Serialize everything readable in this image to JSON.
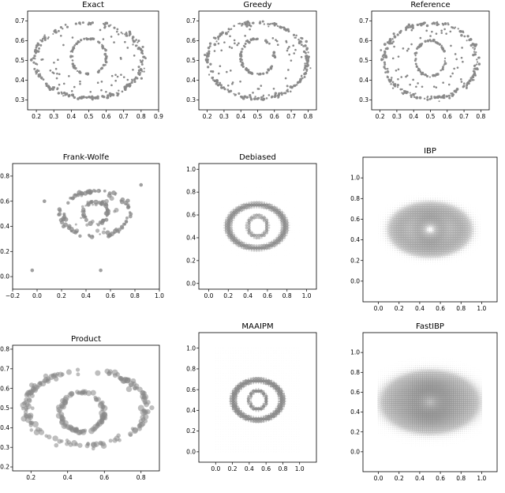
{
  "chart_data": [
    {
      "id": "exact",
      "type": "scatter",
      "title": "Exact",
      "style": "ring-points",
      "marker_size": "small",
      "xlim": [
        0.15,
        0.9
      ],
      "ylim": [
        0.25,
        0.75
      ],
      "xticks": [
        "0.2",
        "0.3",
        "0.4",
        "0.5",
        "0.6",
        "0.7",
        "0.8",
        "0.9"
      ],
      "yticks": [
        "0.3",
        "0.4",
        "0.5",
        "0.6",
        "0.7"
      ],
      "shapes": {
        "outer_ring": {
          "center": [
            0.5,
            0.5
          ],
          "radius": [
            0.31,
            0.19
          ]
        },
        "inner_ring": {
          "center": [
            0.5,
            0.52
          ],
          "radius": [
            0.1,
            0.09
          ]
        }
      },
      "color": "#888888",
      "grid": false
    },
    {
      "id": "greedy",
      "type": "scatter",
      "title": "Greedy",
      "style": "ring-points",
      "marker_size": "small",
      "xlim": [
        0.15,
        0.85
      ],
      "ylim": [
        0.25,
        0.75
      ],
      "xticks": [
        "0.2",
        "0.3",
        "0.4",
        "0.5",
        "0.6",
        "0.7",
        "0.8"
      ],
      "yticks": [
        "0.3",
        "0.4",
        "0.5",
        "0.6",
        "0.7"
      ],
      "shapes": {
        "outer_ring": {
          "center": [
            0.5,
            0.5
          ],
          "radius": [
            0.3,
            0.19
          ]
        },
        "inner_ring": {
          "center": [
            0.5,
            0.52
          ],
          "radius": [
            0.1,
            0.09
          ]
        }
      },
      "color": "#888888",
      "grid": false
    },
    {
      "id": "reference",
      "type": "scatter",
      "title": "Reference",
      "style": "ring-points",
      "marker_size": "medium",
      "xlim": [
        0.15,
        0.85
      ],
      "ylim": [
        0.25,
        0.75
      ],
      "xticks": [
        "0.2",
        "0.3",
        "0.4",
        "0.5",
        "0.6",
        "0.7",
        "0.8"
      ],
      "yticks": [
        "0.3",
        "0.4",
        "0.5",
        "0.6",
        "0.7"
      ],
      "shapes": {
        "outer_ring": {
          "center": [
            0.5,
            0.5
          ],
          "radius": [
            0.28,
            0.19
          ]
        },
        "inner_ring": {
          "center": [
            0.5,
            0.51
          ],
          "radius": [
            0.09,
            0.09
          ]
        }
      },
      "color": "#888888",
      "grid": false
    },
    {
      "id": "frankwolfe",
      "type": "scatter",
      "title": "Frank-Wolfe",
      "style": "sparse-rings",
      "marker_size": "varied",
      "xlim": [
        -0.2,
        1.0
      ],
      "ylim": [
        -0.1,
        0.9
      ],
      "xticks": [
        "−0.2",
        "0.0",
        "0.2",
        "0.4",
        "0.6",
        "0.8",
        "1.0"
      ],
      "yticks": [
        "0.0",
        "0.2",
        "0.4",
        "0.6",
        "0.8"
      ],
      "shapes": {
        "outer_ring": {
          "center": [
            0.48,
            0.5
          ],
          "radius": [
            0.28,
            0.18
          ]
        },
        "inner_ring": {
          "center": [
            0.48,
            0.51
          ],
          "radius": [
            0.1,
            0.09
          ]
        }
      },
      "outliers": [
        [
          -0.04,
          0.05
        ],
        [
          0.52,
          0.05
        ],
        [
          0.06,
          0.6
        ],
        [
          0.85,
          0.73
        ]
      ],
      "color": "#888888",
      "grid": false
    },
    {
      "id": "debiased",
      "type": "scatter",
      "title": "Debiased",
      "style": "grid-rings",
      "marker_size": "grid",
      "xlim": [
        -0.1,
        1.1
      ],
      "ylim": [
        -0.05,
        1.05
      ],
      "xticks": [
        "0.0",
        "0.2",
        "0.4",
        "0.6",
        "0.8",
        "1.0"
      ],
      "yticks": [
        "0.0",
        "0.2",
        "0.4",
        "0.6",
        "0.8",
        "1.0"
      ],
      "shapes": {
        "outer_ring": {
          "center": [
            0.49,
            0.5
          ],
          "radius": [
            0.29,
            0.19
          ]
        },
        "inner_ring": {
          "center": [
            0.5,
            0.5
          ],
          "radius": [
            0.1,
            0.09
          ]
        }
      },
      "color": "#888888",
      "grid": false
    },
    {
      "id": "ibp",
      "type": "scatter",
      "title": "IBP",
      "style": "blur-grid",
      "marker_size": "grid",
      "xlim": [
        -0.15,
        1.15
      ],
      "ylim": [
        -0.2,
        1.2
      ],
      "xticks": [
        "0.0",
        "0.2",
        "0.4",
        "0.6",
        "0.8",
        "1.0"
      ],
      "yticks": [
        "0.0",
        "0.2",
        "0.4",
        "0.6",
        "0.8",
        "1.0"
      ],
      "shapes": {
        "outer_ring": {
          "center": [
            0.5,
            0.5
          ],
          "radius": [
            0.29,
            0.19
          ]
        },
        "inner_ring": {
          "center": [
            0.5,
            0.5
          ],
          "radius": [
            0.1,
            0.09
          ]
        }
      },
      "color": "#888888",
      "grid": false
    },
    {
      "id": "product",
      "type": "scatter",
      "title": "Product",
      "style": "ring-blobs",
      "marker_size": "large",
      "xlim": [
        0.1,
        0.9
      ],
      "ylim": [
        0.18,
        0.82
      ],
      "xticks": [
        "0.2",
        "0.4",
        "0.6",
        "0.8"
      ],
      "yticks": [
        "0.2",
        "0.3",
        "0.4",
        "0.5",
        "0.6",
        "0.7",
        "0.8"
      ],
      "shapes": {
        "outer_ring": {
          "center": [
            0.5,
            0.5
          ],
          "radius": [
            0.33,
            0.19
          ]
        },
        "inner_ring": {
          "center": [
            0.48,
            0.48
          ],
          "radius": [
            0.12,
            0.1
          ]
        }
      },
      "color": "#888888",
      "grid": false
    },
    {
      "id": "maaipm",
      "type": "scatter",
      "title": "MAAIPM",
      "style": "grid-rings-full",
      "marker_size": "grid",
      "xlim": [
        -0.2,
        1.2
      ],
      "ylim": [
        -0.1,
        1.15
      ],
      "xticks": [
        "0.0",
        "0.2",
        "0.4",
        "0.6",
        "0.8",
        "1.0"
      ],
      "yticks": [
        "0.0",
        "0.2",
        "0.4",
        "0.6",
        "0.8",
        "1.0"
      ],
      "shapes": {
        "outer_ring": {
          "center": [
            0.5,
            0.5
          ],
          "radius": [
            0.29,
            0.19
          ]
        },
        "inner_ring": {
          "center": [
            0.5,
            0.5
          ],
          "radius": [
            0.1,
            0.09
          ]
        }
      },
      "color": "#888888",
      "grid": false
    },
    {
      "id": "fastibp",
      "type": "scatter",
      "title": "FastIBP",
      "style": "blur-grid-dense",
      "marker_size": "grid",
      "xlim": [
        -0.15,
        1.15
      ],
      "ylim": [
        -0.2,
        1.2
      ],
      "xticks": [
        "0.0",
        "0.2",
        "0.4",
        "0.6",
        "0.8",
        "1.0"
      ],
      "yticks": [
        "0.0",
        "0.2",
        "0.4",
        "0.6",
        "0.8",
        "1.0"
      ],
      "shapes": {
        "outer_ring": {
          "center": [
            0.5,
            0.5
          ],
          "radius": [
            0.29,
            0.19
          ]
        },
        "inner_ring": {
          "center": [
            0.5,
            0.5
          ],
          "radius": [
            0.1,
            0.09
          ]
        }
      },
      "color": "#888888",
      "grid": false
    }
  ]
}
